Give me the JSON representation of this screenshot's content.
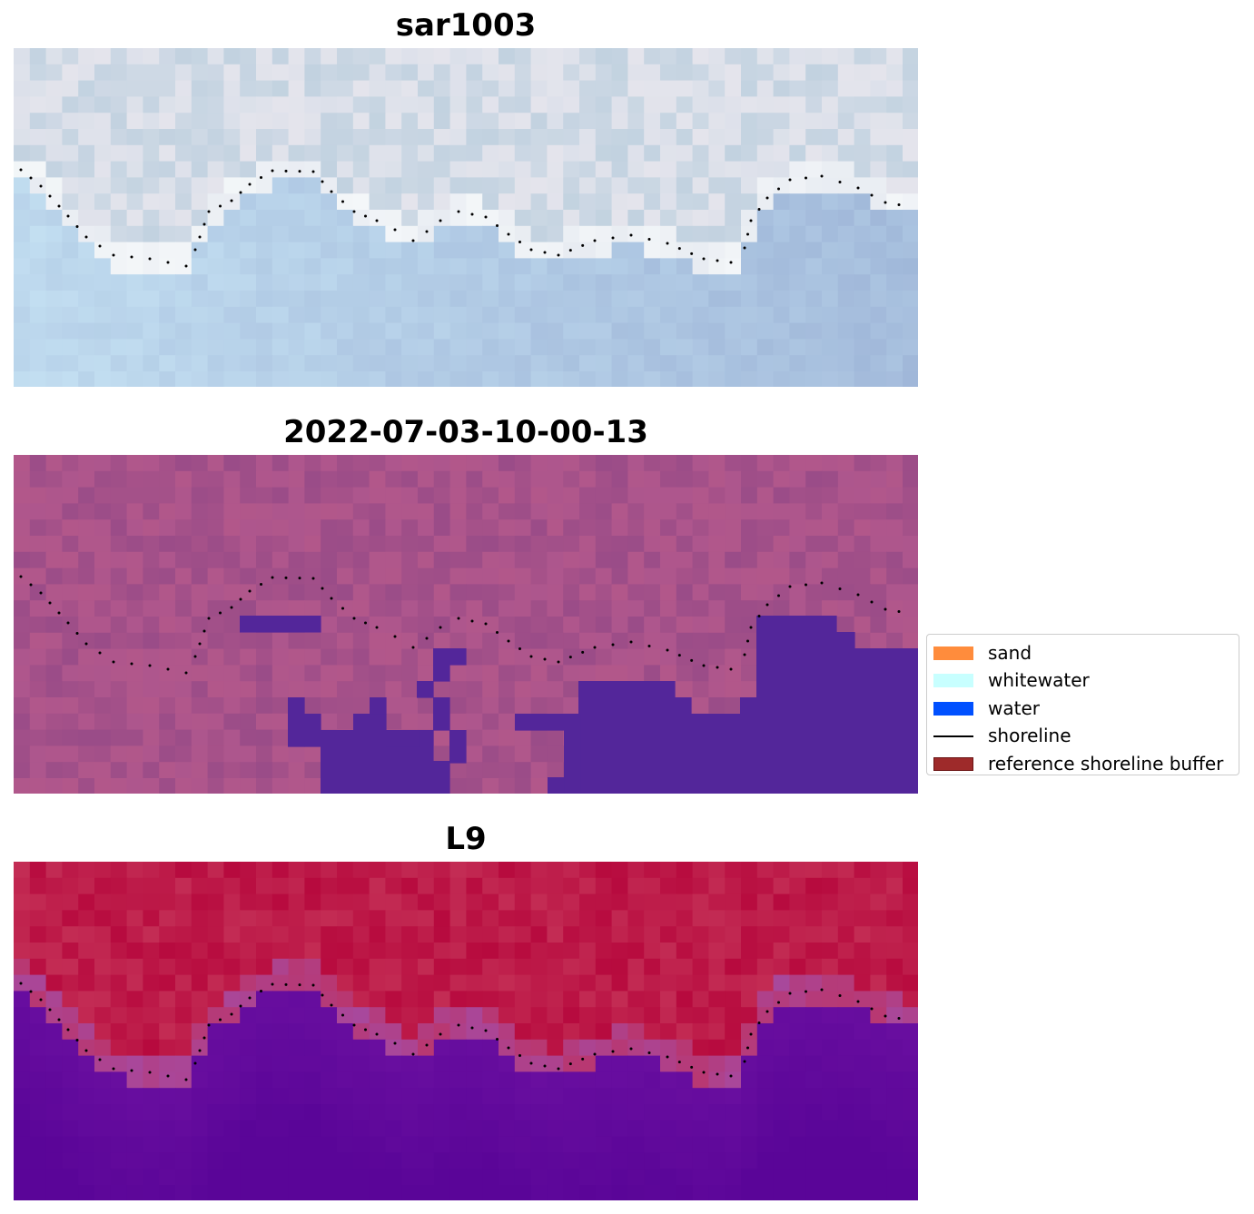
{
  "panels": [
    {
      "title": "sar1003",
      "image_kind": "rgb",
      "palette": {
        "land_a": "#dbe0ea",
        "land_b": "#c2d2e0",
        "land_c": "#eee9ee",
        "foam": "#f4f7f9",
        "water_a": "#c4e0f2",
        "water_b": "#9fb6d8"
      }
    },
    {
      "title": "2022-07-03-10-00-13",
      "image_kind": "classification",
      "palette": {
        "land_a": "#b2578a",
        "land_b": "#9a4c88",
        "land_c": "#a85590",
        "water_class": "#53269a"
      }
    },
    {
      "title": "L9",
      "image_kind": "water-index",
      "palette": {
        "land_a": "#c32c54",
        "land_b": "#b70a3e",
        "edge": "#a8489c",
        "water_a": "#6a0fa0",
        "water_b": "#5a0598"
      }
    }
  ],
  "legend": {
    "items": [
      {
        "label": "sand",
        "kind": "patch",
        "color": "#ff8c3c",
        "edge": "#ff8c3c"
      },
      {
        "label": "whitewater",
        "kind": "patch",
        "color": "#c8ffff",
        "edge": "#c8ffff"
      },
      {
        "label": "water",
        "kind": "patch",
        "color": "#0050ff",
        "edge": "#0050ff"
      },
      {
        "label": "shoreline",
        "kind": "line",
        "color": "#000000"
      },
      {
        "label": "reference shoreline buffer",
        "kind": "patch",
        "color": "#9e2a2a",
        "edge": "#6b1414"
      }
    ]
  }
}
